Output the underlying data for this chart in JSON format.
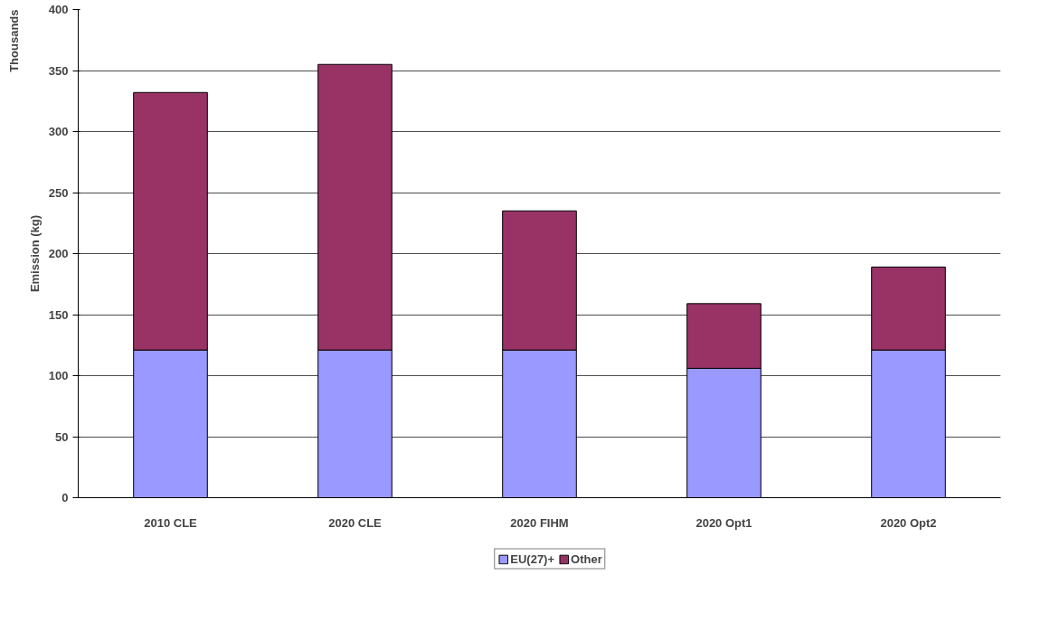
{
  "chart_data": {
    "type": "bar",
    "stacked": true,
    "ylabel": "Emission (kg)",
    "annotations": [
      "Thousands"
    ],
    "categories": [
      "2010 CLE",
      "2020 CLE",
      "2020 FIHM",
      "2020 Opt1",
      "2020 Opt2"
    ],
    "series": [
      {
        "name": "EU(27)+",
        "color": "#9999ff",
        "values": [
          121,
          121,
          121,
          106,
          121
        ]
      },
      {
        "name": "Other",
        "color": "#993366",
        "values": [
          211,
          234,
          114,
          53,
          68
        ]
      }
    ],
    "ylim": [
      0,
      400
    ],
    "yticks": [
      0,
      50,
      100,
      150,
      200,
      250,
      300,
      350,
      400
    ],
    "grid": "y",
    "legend": "bottom"
  }
}
